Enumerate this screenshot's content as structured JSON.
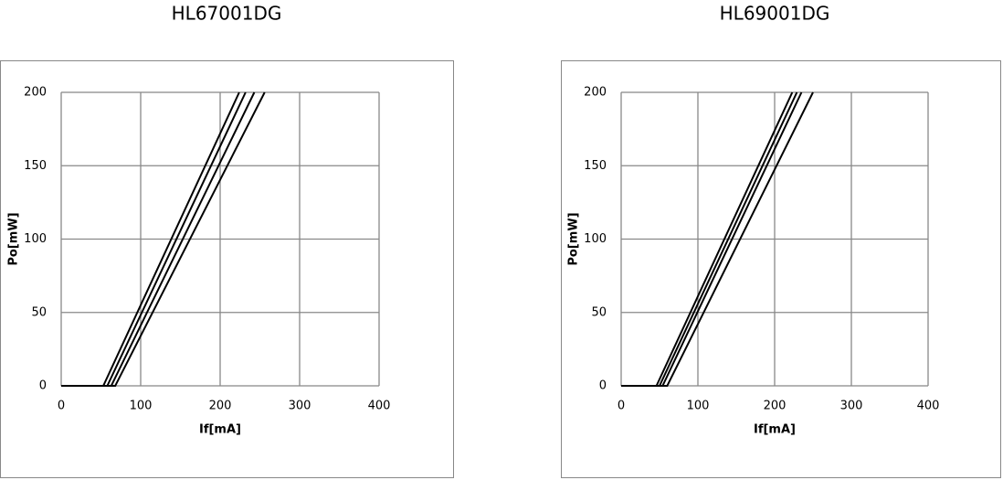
{
  "chart_data": [
    {
      "type": "line",
      "title": "HL67001DG",
      "xlabel": "If[mA]",
      "ylabel": "Po[mW]",
      "xlim": [
        0,
        400
      ],
      "ylim": [
        0,
        200
      ],
      "xticks": [
        0,
        100,
        200,
        300,
        400
      ],
      "yticks": [
        0,
        50,
        100,
        150,
        200
      ],
      "grid": true,
      "series": [
        {
          "color": "#000000",
          "x": [
            0,
            53,
            224
          ],
          "values": [
            0,
            0,
            200
          ]
        },
        {
          "color": "#000000",
          "x": [
            0,
            58,
            232
          ],
          "values": [
            0,
            0,
            200
          ]
        },
        {
          "color": "#000000",
          "x": [
            0,
            63,
            243
          ],
          "values": [
            0,
            0,
            200
          ]
        },
        {
          "color": "#000000",
          "x": [
            0,
            68,
            256
          ],
          "values": [
            0,
            0,
            200
          ]
        }
      ]
    },
    {
      "type": "line",
      "title": "HL69001DG",
      "xlabel": "If[mA]",
      "ylabel": "Po[mW]",
      "xlim": [
        0,
        400
      ],
      "ylim": [
        0,
        200
      ],
      "xticks": [
        0,
        100,
        200,
        300,
        400
      ],
      "yticks": [
        0,
        50,
        100,
        150,
        200
      ],
      "grid": true,
      "series": [
        {
          "color": "#000000",
          "x": [
            0,
            46,
            223
          ],
          "values": [
            0,
            0,
            200
          ]
        },
        {
          "color": "#000000",
          "x": [
            0,
            50,
            229
          ],
          "values": [
            0,
            0,
            200
          ]
        },
        {
          "color": "#000000",
          "x": [
            0,
            54,
            235
          ],
          "values": [
            0,
            0,
            200
          ]
        },
        {
          "color": "#000000",
          "x": [
            0,
            60,
            250
          ],
          "values": [
            0,
            0,
            200
          ]
        }
      ]
    }
  ]
}
